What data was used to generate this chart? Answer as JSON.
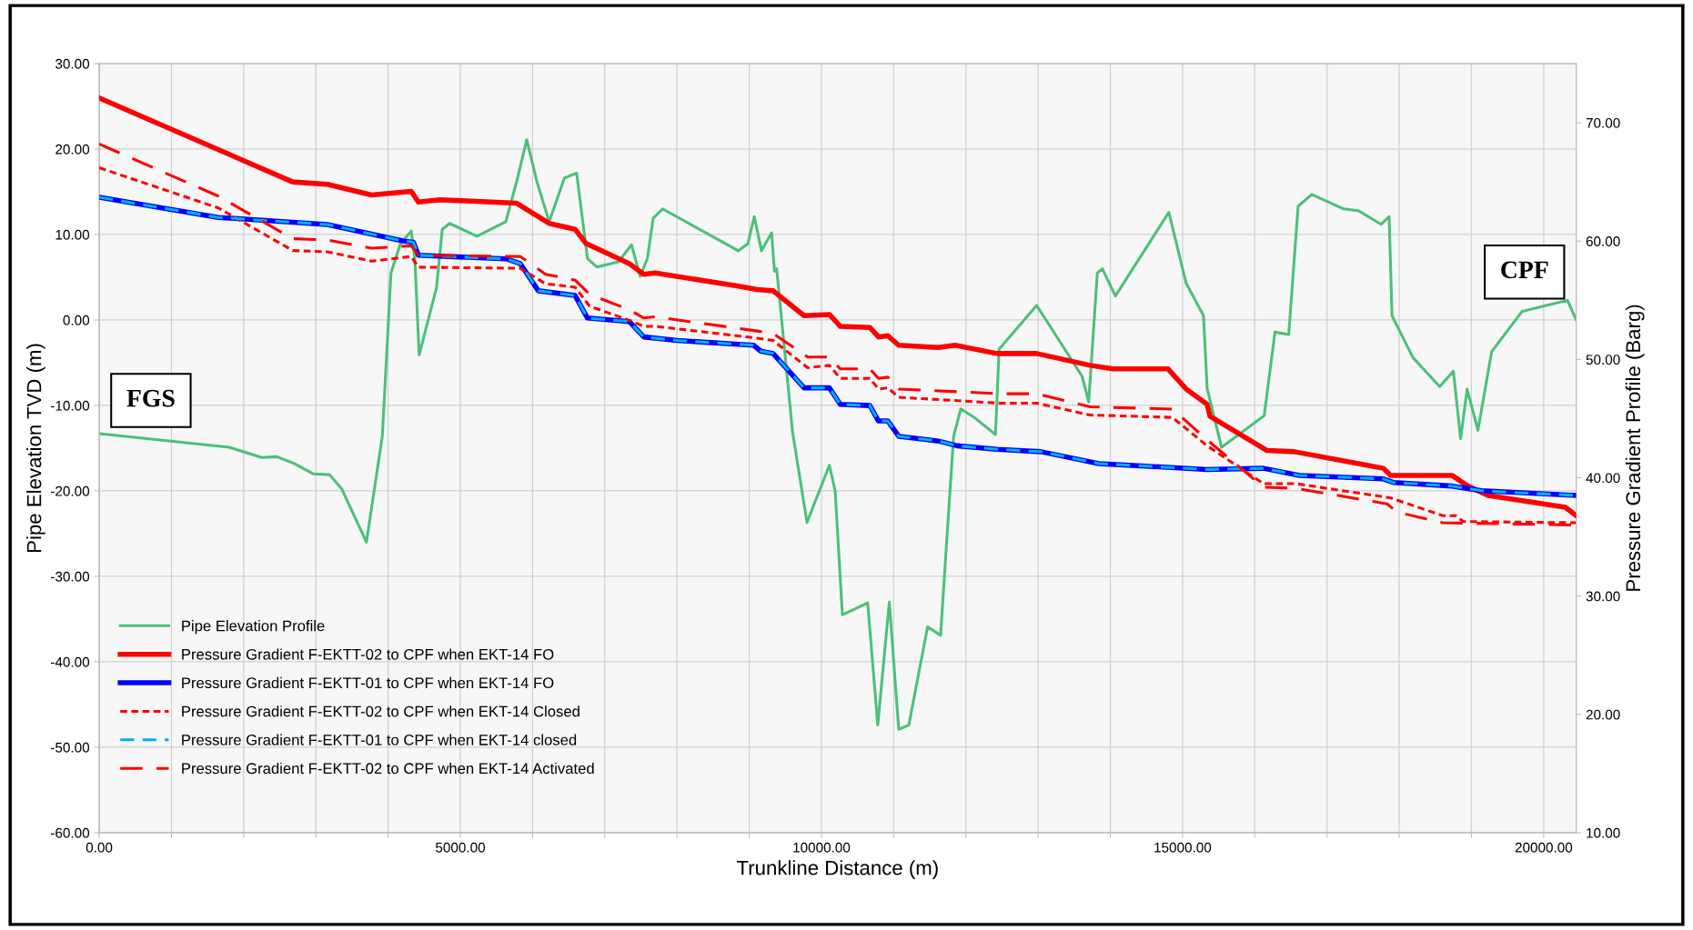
{
  "chart_data": {
    "type": "line",
    "xlabel": "Trunkline Distance (m)",
    "ylabel": "Pipe Elevation TVD (m)",
    "y2label": "Pressure Gradient Profile (Barg)",
    "xlim": [
      0,
      20450
    ],
    "ylim": [
      -60,
      30
    ],
    "y2lim": [
      10,
      75
    ],
    "xticks": [
      {
        "value": 0,
        "label": "0.00"
      },
      {
        "value": 1000,
        "label": null
      },
      {
        "value": 2000,
        "label": null
      },
      {
        "value": 3000,
        "label": null
      },
      {
        "value": 4000,
        "label": null
      },
      {
        "value": 5000,
        "label": "5000.00"
      },
      {
        "value": 6000,
        "label": null
      },
      {
        "value": 7000,
        "label": null
      },
      {
        "value": 8000,
        "label": null
      },
      {
        "value": 9000,
        "label": null
      },
      {
        "value": 10000,
        "label": "10000.00"
      },
      {
        "value": 11000,
        "label": null
      },
      {
        "value": 12000,
        "label": null
      },
      {
        "value": 13000,
        "label": null
      },
      {
        "value": 14000,
        "label": null
      },
      {
        "value": 15000,
        "label": "15000.00"
      },
      {
        "value": 16000,
        "label": null
      },
      {
        "value": 17000,
        "label": null
      },
      {
        "value": 18000,
        "label": null
      },
      {
        "value": 19000,
        "label": null
      },
      {
        "value": 20000,
        "label": "20000.00"
      }
    ],
    "yticks": [
      {
        "value": -60,
        "label": "-60.00"
      },
      {
        "value": -50,
        "label": "-50.00"
      },
      {
        "value": -40,
        "label": "-40.00"
      },
      {
        "value": -30,
        "label": "-30.00"
      },
      {
        "value": -20,
        "label": "-20.00"
      },
      {
        "value": -10,
        "label": "-10.00"
      },
      {
        "value": 0,
        "label": "0.00"
      },
      {
        "value": 10,
        "label": "10.00"
      },
      {
        "value": 20,
        "label": "20.00"
      },
      {
        "value": 30,
        "label": "30.00"
      }
    ],
    "y2ticks": [
      {
        "value": 10,
        "label": "10.00"
      },
      {
        "value": 20,
        "label": "20.00"
      },
      {
        "value": 30,
        "label": "30.00"
      },
      {
        "value": 40,
        "label": "40.00"
      },
      {
        "value": 50,
        "label": "50.00"
      },
      {
        "value": 60,
        "label": "60.00"
      },
      {
        "value": 70,
        "label": "70.00"
      }
    ],
    "grid": true,
    "legend": "bottom left",
    "marker": "none",
    "annotations": [
      "FGS",
      "CPF"
    ],
    "series": [
      {
        "name": "Pipe Elevation Profile",
        "color": "#4cc07a",
        "line_style": "solid",
        "x": [
          0,
          1800,
          2250,
          2460,
          2700,
          2960,
          3190,
          3360,
          3700,
          3920,
          4040,
          4170,
          4320,
          4370,
          4430,
          4670,
          4750,
          4850,
          5230,
          5630,
          5780,
          5920,
          6060,
          6230,
          6440,
          6610,
          6760,
          6890,
          7190,
          7370,
          7490,
          7590,
          7670,
          7800,
          8850,
          8980,
          9070,
          9170,
          9310,
          9350,
          9380,
          9600,
          9800,
          10110,
          10190,
          10290,
          10640,
          10780,
          10940,
          11070,
          11210,
          11470,
          11650,
          11730,
          11830,
          11930,
          12130,
          12410,
          12460,
          12980,
          13610,
          13700,
          13820,
          13890,
          14070,
          14810,
          15050,
          15290,
          15340,
          15540,
          16130,
          16280,
          16470,
          16600,
          16790,
          17230,
          17430,
          17750,
          17860,
          17900,
          18190,
          18560,
          18750,
          18850,
          18940,
          19090,
          19280,
          19700,
          20330,
          20450
        ],
        "values": [
          -13.3,
          -14.9,
          -16.1,
          -16.0,
          -16.8,
          -18.0,
          -18.1,
          -19.8,
          -26.0,
          -13.6,
          5.5,
          8.9,
          10.4,
          7.2,
          -4.1,
          3.8,
          10.6,
          11.3,
          9.8,
          11.5,
          16.2,
          21.1,
          16.2,
          11.5,
          16.6,
          17.2,
          7.2,
          6.2,
          6.8,
          8.8,
          5.1,
          7.2,
          11.9,
          13.0,
          8.1,
          8.9,
          12.1,
          8.1,
          10.2,
          5.7,
          6.0,
          -13.1,
          -23.7,
          -17.0,
          -20.0,
          -34.5,
          -33.1,
          -47.4,
          -33.0,
          -47.9,
          -47.4,
          -35.9,
          -36.9,
          -26.4,
          -13.6,
          -10.4,
          -11.5,
          -13.4,
          -3.4,
          1.7,
          -6.6,
          -9.6,
          5.5,
          6.0,
          2.8,
          12.6,
          4.3,
          0.5,
          -8.0,
          -14.9,
          -11.2,
          -1.4,
          -1.7,
          13.3,
          14.7,
          13.0,
          12.8,
          11.2,
          12.1,
          0.5,
          -4.4,
          -7.8,
          -6.0,
          -13.9,
          -8.1,
          -12.9,
          -3.7,
          1.0,
          2.3,
          0.0
        ]
      },
      {
        "name": "Pressure Gradient F-EKTT-02 to CPF when EKT-14 FO",
        "color": "#ff0000",
        "line_style": "solid",
        "axis": "y2",
        "x": [
          0,
          2680,
          3160,
          3770,
          4320,
          4420,
          4720,
          5780,
          6230,
          6590,
          6740,
          7340,
          7540,
          7700,
          8850,
          9110,
          9330,
          9760,
          10110,
          10260,
          10670,
          10790,
          10920,
          11070,
          11620,
          11850,
          12430,
          12980,
          13720,
          14040,
          14800,
          15050,
          15340,
          15380,
          16170,
          16550,
          17780,
          17880,
          18730,
          18950,
          19230,
          20300,
          20450
        ],
        "values": [
          72.1,
          65.0,
          64.8,
          63.9,
          64.2,
          63.3,
          63.5,
          63.2,
          61.5,
          61.0,
          59.8,
          58.1,
          57.2,
          57.3,
          56.2,
          55.9,
          55.8,
          53.7,
          53.8,
          52.8,
          52.7,
          51.9,
          52.0,
          51.2,
          51.0,
          51.2,
          50.5,
          50.5,
          49.5,
          49.2,
          49.2,
          47.5,
          46.2,
          45.2,
          42.3,
          42.2,
          40.8,
          40.2,
          40.2,
          39.3,
          38.5,
          37.5,
          36.8
        ]
      },
      {
        "name": "Pressure Gradient F-EKTT-01 to CPF when EKT-14 FO",
        "color": "#0000ff",
        "line_style": "solid",
        "axis": "y2",
        "x": [
          0,
          1650,
          3160,
          4220,
          4350,
          4420,
          5630,
          5830,
          6080,
          6590,
          6760,
          7340,
          7540,
          8000,
          9060,
          9160,
          9330,
          9760,
          10110,
          10260,
          10670,
          10790,
          10920,
          11070,
          11620,
          11880,
          12430,
          13040,
          13840,
          15340,
          16120,
          16620,
          17780,
          17920,
          18730,
          19140,
          20450
        ],
        "values": [
          63.7,
          62.0,
          61.4,
          60.0,
          59.9,
          58.8,
          58.5,
          58.1,
          55.8,
          55.4,
          53.5,
          53.2,
          51.9,
          51.6,
          51.2,
          50.7,
          50.5,
          47.6,
          47.6,
          46.2,
          46.1,
          44.8,
          44.8,
          43.5,
          43.1,
          42.7,
          42.4,
          42.2,
          41.2,
          40.7,
          40.8,
          40.2,
          39.9,
          39.6,
          39.3,
          38.9,
          38.5
        ]
      },
      {
        "name": "Pressure Gradient F-EKTT-02 to CPF when EKT-14 Closed",
        "color": "#ff0000",
        "line_style": "dotted",
        "axis": "y2",
        "x": [
          0,
          1650,
          2680,
          3160,
          3770,
          4320,
          4420,
          5830,
          6180,
          6590,
          6790,
          7340,
          7540,
          7700,
          9110,
          9330,
          9810,
          10110,
          10260,
          10670,
          10790,
          10920,
          11070,
          12480,
          12980,
          13720,
          14860,
          15340,
          16120,
          16570,
          17880,
          18600,
          18780,
          18890,
          20450
        ],
        "values": [
          66.2,
          62.8,
          59.2,
          59.1,
          58.3,
          58.7,
          57.8,
          57.7,
          56.4,
          56.1,
          54.5,
          53.3,
          52.8,
          52.8,
          51.8,
          51.6,
          49.3,
          49.5,
          48.4,
          48.4,
          47.5,
          47.6,
          46.8,
          46.3,
          46.3,
          45.3,
          45.1,
          42.7,
          39.5,
          39.5,
          38.3,
          36.8,
          36.8,
          36.3,
          36.2
        ]
      },
      {
        "name": "Pressure Gradient F-EKTT-01 to CPF when EKT-14 closed",
        "color": "#00b0f0",
        "line_style": "dashed",
        "axis": "y2",
        "x": [
          0,
          1650,
          3160,
          4220,
          4350,
          4420,
          5630,
          5830,
          6080,
          6590,
          6760,
          7340,
          7540,
          8000,
          9060,
          9160,
          9330,
          9760,
          10110,
          10260,
          10670,
          10790,
          10920,
          11070,
          11620,
          11880,
          12430,
          13040,
          13840,
          15340,
          16120,
          16620,
          17780,
          17920,
          18730,
          19140,
          20450
        ],
        "values": [
          63.7,
          62.0,
          61.4,
          60.0,
          59.9,
          58.8,
          58.5,
          58.1,
          55.8,
          55.4,
          53.5,
          53.2,
          51.9,
          51.6,
          51.2,
          50.7,
          50.5,
          47.6,
          47.6,
          46.2,
          46.1,
          44.8,
          44.8,
          43.5,
          43.1,
          42.7,
          42.4,
          42.2,
          41.2,
          40.7,
          40.8,
          40.2,
          39.9,
          39.6,
          39.3,
          38.9,
          38.5
        ]
      },
      {
        "name": "Pressure Gradient F-EKTT-02 to CPF when EKT-14 Activated",
        "color": "#ff0000",
        "line_style": "dashed",
        "axis": "y2",
        "x": [
          0,
          1650,
          2680,
          3160,
          3770,
          4320,
          4420,
          5830,
          6180,
          6590,
          6790,
          7340,
          7540,
          7700,
          9110,
          9330,
          9810,
          10110,
          10260,
          10670,
          10790,
          10920,
          11070,
          12480,
          12980,
          13720,
          14860,
          15340,
          16120,
          16570,
          17830,
          17970,
          18600,
          20450
        ],
        "values": [
          68.2,
          63.8,
          60.2,
          60.1,
          59.4,
          59.6,
          58.8,
          58.7,
          57.2,
          56.7,
          55.5,
          54.2,
          53.5,
          53.6,
          52.4,
          52.2,
          50.2,
          50.2,
          49.2,
          49.2,
          48.4,
          48.5,
          47.5,
          47.1,
          47.1,
          46.0,
          45.8,
          43.2,
          39.2,
          39.1,
          37.8,
          37.1,
          36.2,
          36.0
        ]
      }
    ]
  }
}
